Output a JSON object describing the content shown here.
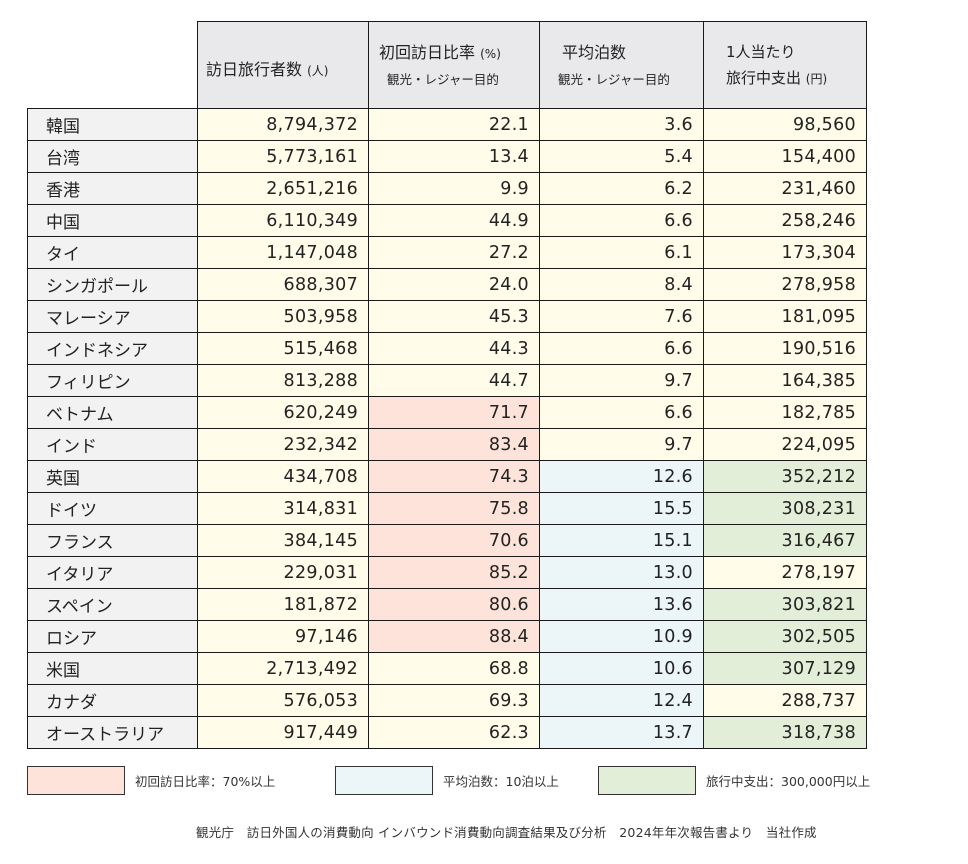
{
  "header": {
    "visitors": {
      "main": "訪日旅行者数",
      "unit": "(人)"
    },
    "first_visit": {
      "main": "初回訪日比率",
      "unit": "(%)",
      "sub": "観光・レジャー目的"
    },
    "nights": {
      "main": "平均泊数",
      "sub": "観光・レジャー目的"
    },
    "spend": {
      "line1": "1人当たり",
      "line2": "旅行中支出",
      "unit": "(円)"
    }
  },
  "colors": {
    "first_visit_highlight": "#fde3d9",
    "nights_highlight": "#ecf5f8",
    "spend_highlight": "#e3eed9",
    "default_cell": "#fffde9",
    "country_cell": "#f2f2f2",
    "header_cell": "#e9e9ec"
  },
  "rows": [
    {
      "country": "韓国",
      "visitors": "8,794,372",
      "first_visit": "22.1",
      "nights": "3.6",
      "spend": "98,560",
      "hl": [
        false,
        false,
        false
      ]
    },
    {
      "country": "台湾",
      "visitors": "5,773,161",
      "first_visit": "13.4",
      "nights": "5.4",
      "spend": "154,400",
      "hl": [
        false,
        false,
        false
      ]
    },
    {
      "country": "香港",
      "visitors": "2,651,216",
      "first_visit": "9.9",
      "nights": "6.2",
      "spend": "231,460",
      "hl": [
        false,
        false,
        false
      ]
    },
    {
      "country": "中国",
      "visitors": "6,110,349",
      "first_visit": "44.9",
      "nights": "6.6",
      "spend": "258,246",
      "hl": [
        false,
        false,
        false
      ]
    },
    {
      "country": "タイ",
      "visitors": "1,147,048",
      "first_visit": "27.2",
      "nights": "6.1",
      "spend": "173,304",
      "hl": [
        false,
        false,
        false
      ]
    },
    {
      "country": "シンガポール",
      "visitors": "688,307",
      "first_visit": "24.0",
      "nights": "8.4",
      "spend": "278,958",
      "hl": [
        false,
        false,
        false
      ]
    },
    {
      "country": "マレーシア",
      "visitors": "503,958",
      "first_visit": "45.3",
      "nights": "7.6",
      "spend": "181,095",
      "hl": [
        false,
        false,
        false
      ]
    },
    {
      "country": "インドネシア",
      "visitors": "515,468",
      "first_visit": "44.3",
      "nights": "6.6",
      "spend": "190,516",
      "hl": [
        false,
        false,
        false
      ]
    },
    {
      "country": "フィリピン",
      "visitors": "813,288",
      "first_visit": "44.7",
      "nights": "9.7",
      "spend": "164,385",
      "hl": [
        false,
        false,
        false
      ]
    },
    {
      "country": "ベトナム",
      "visitors": "620,249",
      "first_visit": "71.7",
      "nights": "6.6",
      "spend": "182,785",
      "hl": [
        true,
        false,
        false
      ]
    },
    {
      "country": "インド",
      "visitors": "232,342",
      "first_visit": "83.4",
      "nights": "9.7",
      "spend": "224,095",
      "hl": [
        true,
        false,
        false
      ]
    },
    {
      "country": "英国",
      "visitors": "434,708",
      "first_visit": "74.3",
      "nights": "12.6",
      "spend": "352,212",
      "hl": [
        true,
        true,
        true
      ]
    },
    {
      "country": "ドイツ",
      "visitors": "314,831",
      "first_visit": "75.8",
      "nights": "15.5",
      "spend": "308,231",
      "hl": [
        true,
        true,
        true
      ]
    },
    {
      "country": "フランス",
      "visitors": "384,145",
      "first_visit": "70.6",
      "nights": "15.1",
      "spend": "316,467",
      "hl": [
        true,
        true,
        true
      ]
    },
    {
      "country": "イタリア",
      "visitors": "229,031",
      "first_visit": "85.2",
      "nights": "13.0",
      "spend": "278,197",
      "hl": [
        true,
        true,
        false
      ]
    },
    {
      "country": "スペイン",
      "visitors": "181,872",
      "first_visit": "80.6",
      "nights": "13.6",
      "spend": "303,821",
      "hl": [
        true,
        true,
        true
      ]
    },
    {
      "country": "ロシア",
      "visitors": "97,146",
      "first_visit": "88.4",
      "nights": "10.9",
      "spend": "302,505",
      "hl": [
        true,
        true,
        true
      ]
    },
    {
      "country": "米国",
      "visitors": "2,713,492",
      "first_visit": "68.8",
      "nights": "10.6",
      "spend": "307,129",
      "hl": [
        false,
        true,
        true
      ]
    },
    {
      "country": "カナダ",
      "visitors": "576,053",
      "first_visit": "69.3",
      "nights": "12.4",
      "spend": "288,737",
      "hl": [
        false,
        true,
        false
      ]
    },
    {
      "country": "オーストラリア",
      "visitors": "917,449",
      "first_visit": "62.3",
      "nights": "13.7",
      "spend": "318,738",
      "hl": [
        false,
        true,
        true
      ]
    }
  ],
  "legend": [
    {
      "label": "初回訪日比率：70%以上",
      "color": "#fde3d9"
    },
    {
      "label": "平均泊数：10泊以上",
      "color": "#ecf5f8"
    },
    {
      "label": "旅行中支出：300,000円以上",
      "color": "#e3eed9"
    }
  ],
  "source": "観光庁　訪日外国人の消費動向 インバウンド消費動向調査結果及び分析　2024年年次報告書より　当社作成"
}
